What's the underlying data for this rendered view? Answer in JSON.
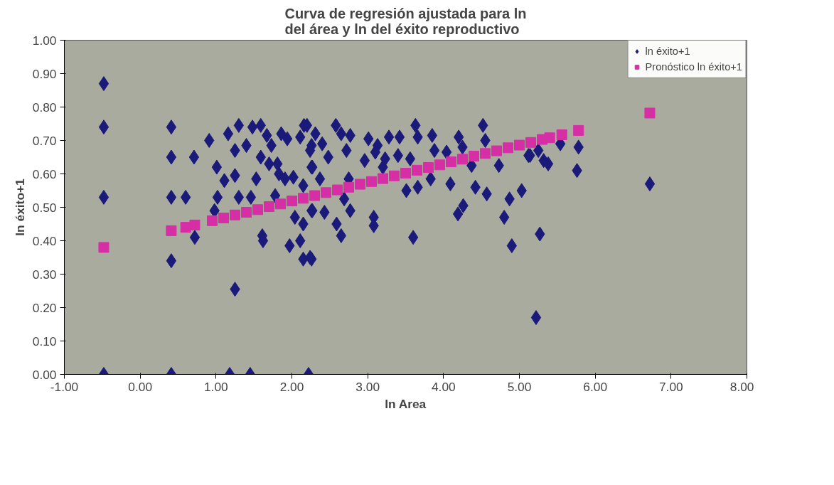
{
  "chart_data": {
    "type": "scatter",
    "title": "Curva de regresión ajustada para ln del área y ln del éxito reproductivo",
    "xlabel": "ln Area",
    "ylabel": "ln éxito+1",
    "xlim": [
      -1,
      8
    ],
    "ylim": [
      0,
      1
    ],
    "xticks": [
      {
        "value": -1,
        "label": "-1.00"
      },
      {
        "value": 0,
        "label": "0.00"
      },
      {
        "value": 1,
        "label": "1.00"
      },
      {
        "value": 2,
        "label": "2.00"
      },
      {
        "value": 3,
        "label": "3.00"
      },
      {
        "value": 4,
        "label": "4.00"
      },
      {
        "value": 5,
        "label": "5.00"
      },
      {
        "value": 6,
        "label": "6.00"
      },
      {
        "value": 7,
        "label": "7.00"
      },
      {
        "value": 8,
        "label": "8.00"
      }
    ],
    "yticks": [
      {
        "value": 0,
        "label": "0.00"
      },
      {
        "value": 0.1,
        "label": "0.10"
      },
      {
        "value": 0.2,
        "label": "0.20"
      },
      {
        "value": 0.3,
        "label": "0.30"
      },
      {
        "value": 0.4,
        "label": "0.40"
      },
      {
        "value": 0.5,
        "label": "0.50"
      },
      {
        "value": 0.6,
        "label": "0.60"
      },
      {
        "value": 0.7,
        "label": "0.70"
      },
      {
        "value": 0.8,
        "label": "0.80"
      },
      {
        "value": 0.9,
        "label": "0.90"
      },
      {
        "value": 1,
        "label": "1.00"
      }
    ],
    "grid": false,
    "legend": "top right",
    "series": [
      {
        "name": "ln éxito+1",
        "color": "#1a1a7a",
        "marker": "diamond",
        "x": [
          -0.48,
          -0.48,
          -0.48,
          -0.48,
          0.41,
          0.41,
          0.41,
          0.41,
          0.41,
          0.6,
          0.71,
          0.72,
          0.91,
          1.01,
          1.11,
          1.02,
          0.98,
          1.16,
          1.3,
          1.25,
          1.4,
          1.48,
          1.59,
          1.67,
          1.73,
          1.86,
          1.94,
          2.16,
          2.11,
          2.26,
          1.59,
          1.7,
          1.81,
          1.83,
          1.91,
          2.02,
          2.15,
          2.26,
          1.25,
          1.53,
          1.3,
          1.46,
          1.78,
          2.26,
          2.04,
          2.15,
          1.61,
          1.62,
          1.97,
          2.11,
          2.15,
          2.26,
          1.25,
          1.18,
          1.45,
          2.22,
          2.2,
          2.31,
          2.4,
          2.24,
          2.48,
          2.27,
          2.37,
          2.58,
          2.65,
          2.77,
          2.72,
          3.01,
          3.13,
          3.1,
          2.96,
          3.23,
          3.2,
          3.28,
          3.42,
          3.63,
          3.66,
          3.85,
          3.4,
          3.56,
          3.88,
          4.04,
          4.2,
          4.25,
          4.52,
          4.55,
          4.37,
          4.73,
          5.12,
          3.83,
          4.09,
          4.42,
          4.57,
          5.03,
          4.87,
          3.51,
          3.66,
          2.69,
          2.75,
          2.27,
          2.43,
          2.77,
          2.59,
          2.65,
          3.08,
          3.08,
          4.26,
          4.19,
          4.8,
          3.6,
          4.9,
          2.24,
          5.22,
          5.14,
          5.25,
          5.32,
          5.38,
          5.54,
          5.78,
          5.76,
          6.72,
          5.27
        ],
        "values": [
          0.87,
          0.74,
          0.53,
          0.0,
          0.74,
          0.65,
          0.53,
          0.34,
          0.0,
          0.53,
          0.65,
          0.41,
          0.7,
          0.62,
          0.58,
          0.53,
          0.49,
          0.72,
          0.745,
          0.67,
          0.685,
          0.74,
          0.745,
          0.715,
          0.685,
          0.72,
          0.705,
          0.745,
          0.71,
          0.685,
          0.65,
          0.63,
          0.63,
          0.6,
          0.585,
          0.59,
          0.565,
          0.62,
          0.595,
          0.585,
          0.53,
          0.53,
          0.535,
          0.49,
          0.47,
          0.45,
          0.415,
          0.4,
          0.385,
          0.4,
          0.345,
          0.345,
          0.255,
          0.0,
          0.0,
          0.0,
          0.745,
          0.72,
          0.69,
          0.67,
          0.65,
          0.62,
          0.585,
          0.745,
          0.72,
          0.715,
          0.67,
          0.705,
          0.685,
          0.665,
          0.64,
          0.645,
          0.62,
          0.71,
          0.71,
          0.745,
          0.71,
          0.715,
          0.655,
          0.645,
          0.67,
          0.665,
          0.71,
          0.68,
          0.745,
          0.7,
          0.625,
          0.625,
          0.655,
          0.585,
          0.57,
          0.56,
          0.54,
          0.55,
          0.525,
          0.55,
          0.56,
          0.525,
          0.585,
          0.49,
          0.485,
          0.49,
          0.45,
          0.415,
          0.47,
          0.445,
          0.505,
          0.48,
          0.47,
          0.41,
          0.385,
          0.35,
          0.17,
          0.655,
          0.67,
          0.64,
          0.63,
          0.69,
          0.68,
          0.61,
          0.57,
          0.42
        ]
      },
      {
        "name": "Pronóstico ln éxito+1",
        "color": "#d62fa6",
        "marker": "square",
        "x": [
          -0.48,
          0.41,
          0.6,
          0.72,
          0.95,
          1.1,
          1.25,
          1.4,
          1.55,
          1.7,
          1.85,
          2.0,
          2.15,
          2.3,
          2.45,
          2.6,
          2.75,
          2.9,
          3.05,
          3.2,
          3.35,
          3.5,
          3.65,
          3.8,
          3.95,
          4.1,
          4.25,
          4.4,
          4.55,
          4.7,
          4.85,
          5.0,
          5.15,
          5.3,
          5.4,
          5.56,
          5.78,
          6.72
        ],
        "values": [
          0.38,
          0.43,
          0.44,
          0.447,
          0.46,
          0.468,
          0.477,
          0.485,
          0.493,
          0.502,
          0.51,
          0.519,
          0.527,
          0.535,
          0.544,
          0.552,
          0.56,
          0.569,
          0.577,
          0.586,
          0.594,
          0.602,
          0.611,
          0.619,
          0.627,
          0.636,
          0.644,
          0.653,
          0.661,
          0.669,
          0.678,
          0.686,
          0.694,
          0.703,
          0.708,
          0.717,
          0.73,
          0.782
        ]
      }
    ]
  }
}
